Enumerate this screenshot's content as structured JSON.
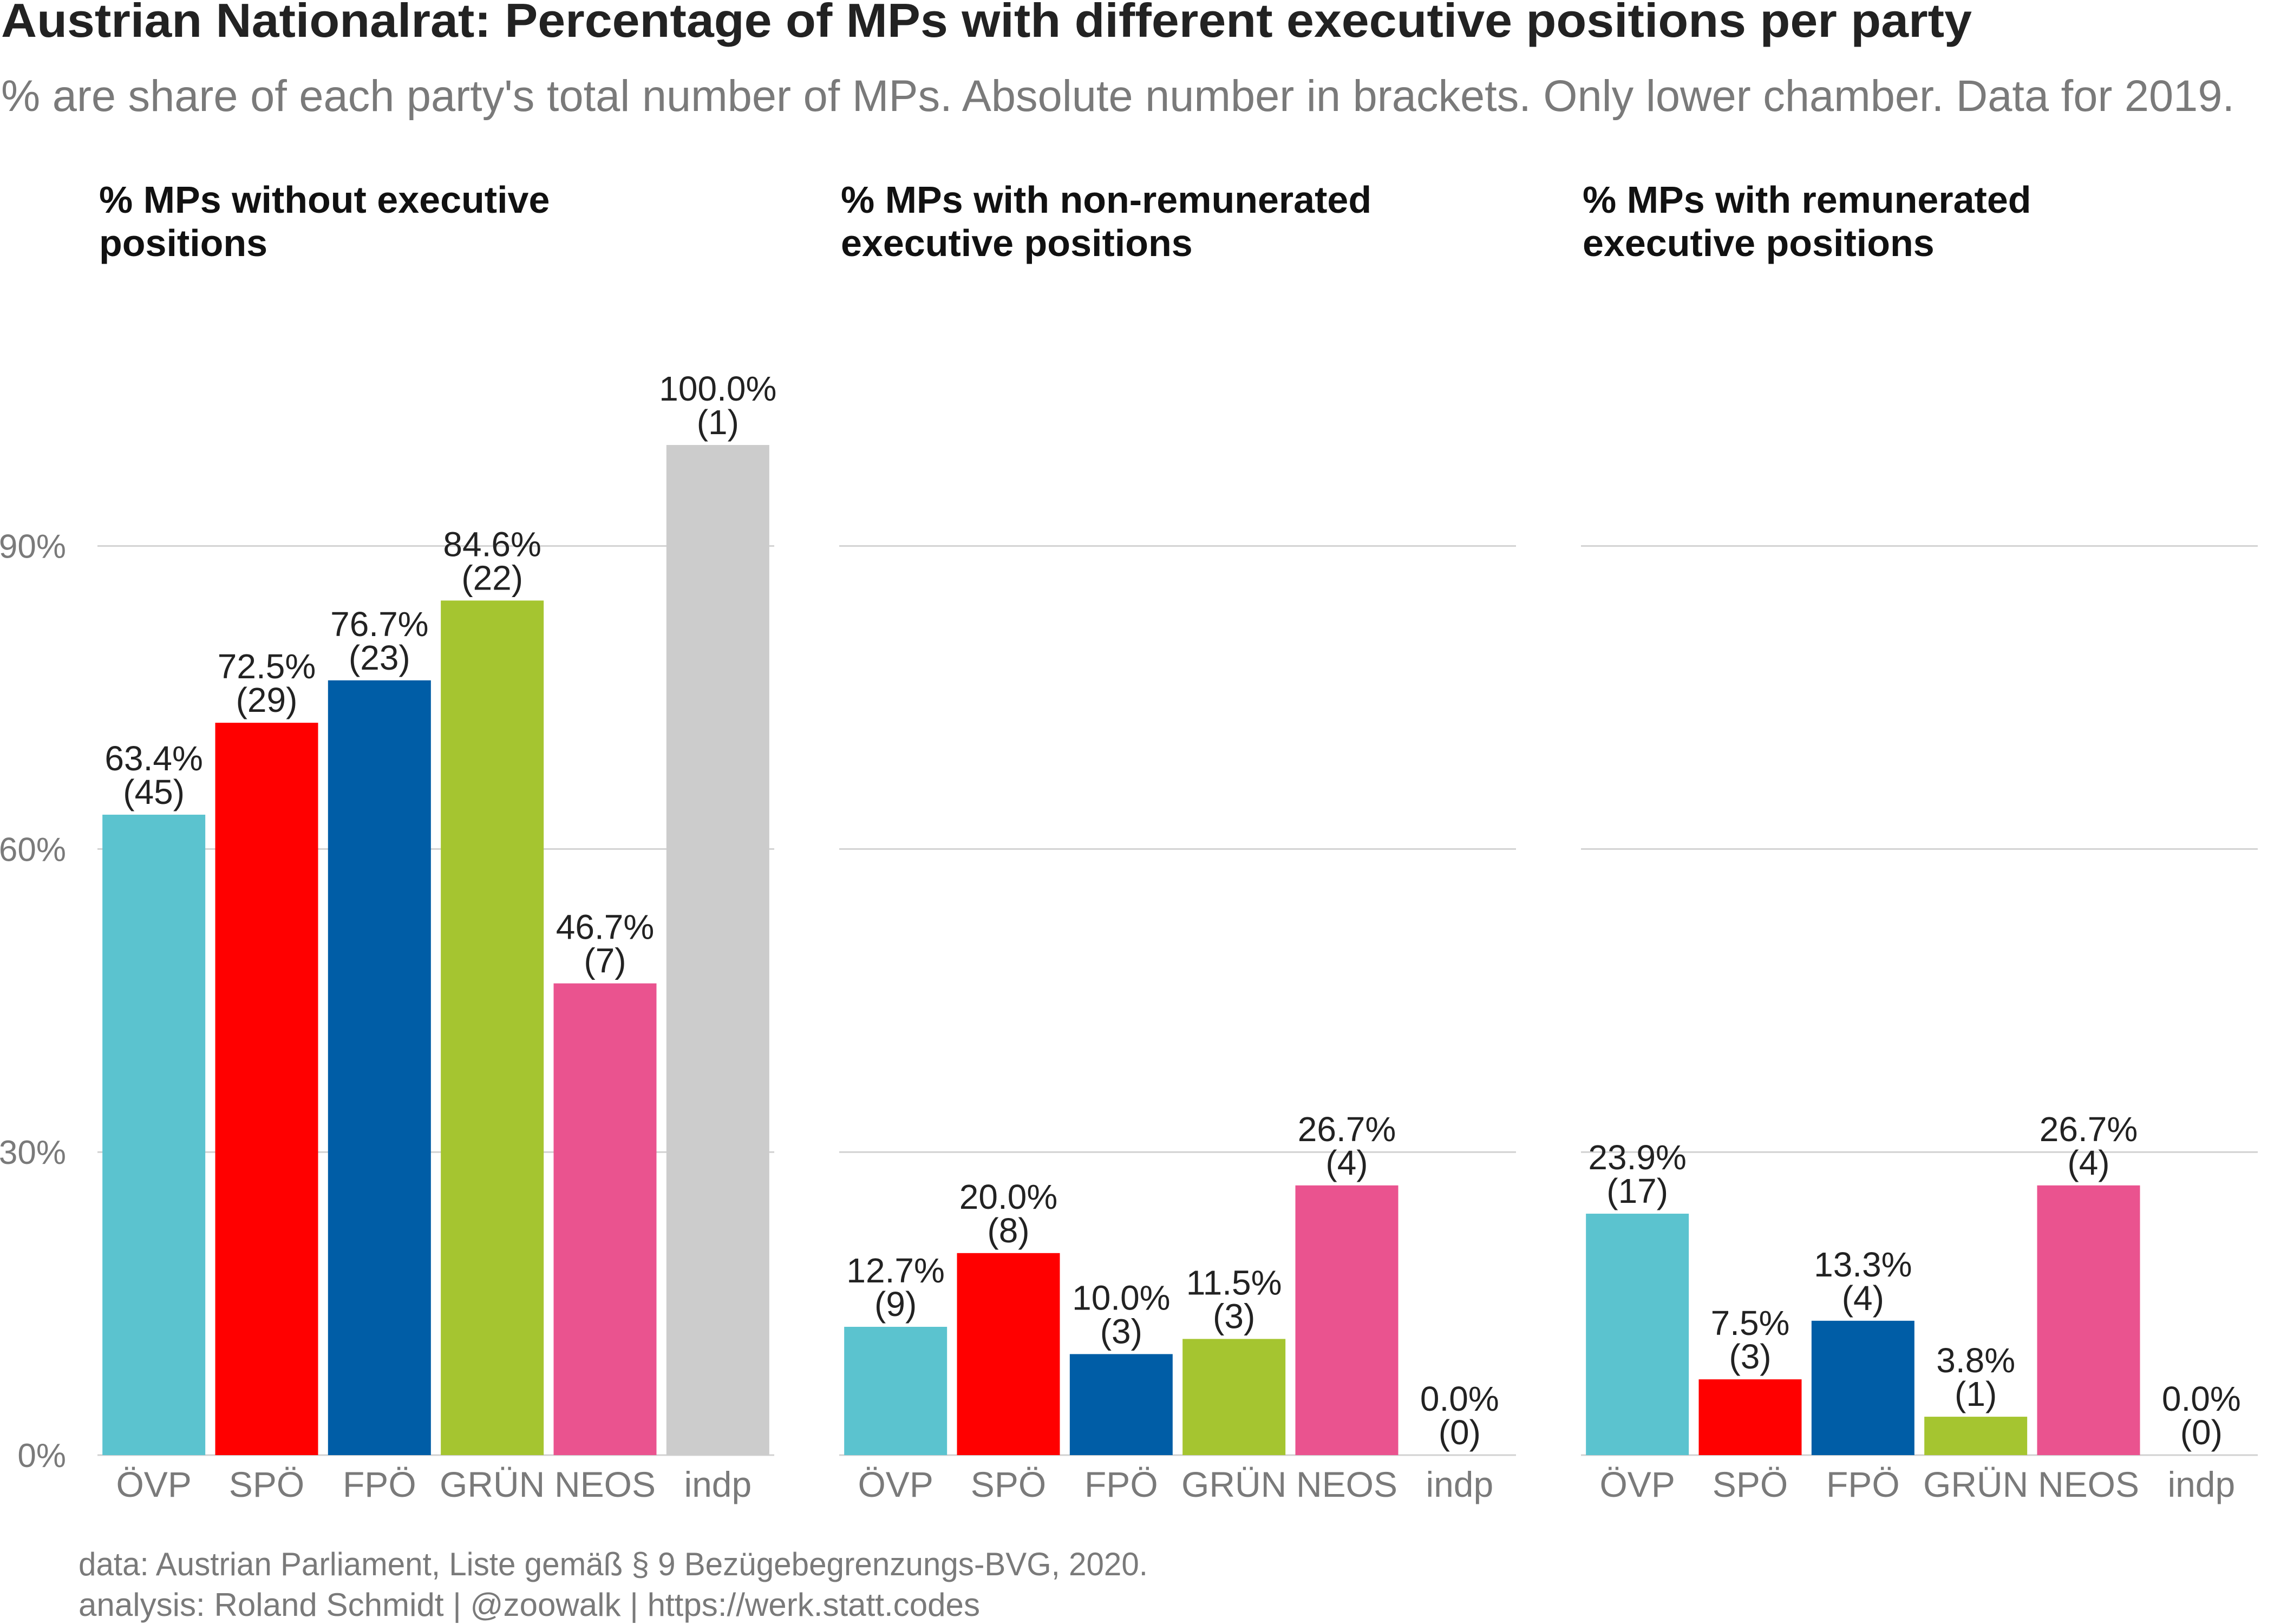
{
  "title": "Austrian Nationalrat: Percentage of MPs with different executive positions per party",
  "subtitle": "% are share of each party's total number of MPs. Absolute number in brackets. Only lower chamber. Data for 2019.",
  "caption": {
    "line1": "data: Austrian Parliament, Liste gemäß § 9 Bezügebegrenzungs-BVG, 2020.",
    "line2": "analysis: Roland Schmidt | @zoowalk | https://werk.statt.codes"
  },
  "chart_data": {
    "type": "bar",
    "categories": [
      "ÖVP",
      "SPÖ",
      "FPÖ",
      "GRÜN",
      "NEOS",
      "indp"
    ],
    "colors": [
      "#5bc3cf",
      "#ff0000",
      "#005da6",
      "#a5c530",
      "#ea538f",
      "#cccccc"
    ],
    "ylim": [
      0,
      100
    ],
    "yticks": [
      0,
      30,
      60,
      90
    ],
    "ytick_labels": [
      "0%",
      "30%",
      "60%",
      "90%"
    ],
    "grid": true,
    "legend": "none",
    "facets": [
      {
        "title_lines": [
          "% MPs without executive",
          "positions"
        ],
        "values": [
          63.4,
          72.5,
          76.7,
          84.6,
          46.7,
          100.0
        ],
        "value_labels": [
          "63.4%",
          "72.5%",
          "76.7%",
          "84.6%",
          "46.7%",
          "100.0%"
        ],
        "counts": [
          "(45)",
          "(29)",
          "(23)",
          "(22)",
          "(7)",
          "(1)"
        ]
      },
      {
        "title_lines": [
          "% MPs with non-remunerated",
          "executive positions"
        ],
        "values": [
          12.7,
          20.0,
          10.0,
          11.5,
          26.7,
          0.0
        ],
        "value_labels": [
          "12.7%",
          "20.0%",
          "10.0%",
          "11.5%",
          "26.7%",
          "0.0%"
        ],
        "counts": [
          "(9)",
          "(8)",
          "(3)",
          "(3)",
          "(4)",
          "(0)"
        ]
      },
      {
        "title_lines": [
          "% MPs with remunerated",
          "executive positions"
        ],
        "values": [
          23.9,
          7.5,
          13.3,
          3.8,
          26.7,
          0.0
        ],
        "value_labels": [
          "23.9%",
          "7.5%",
          "13.3%",
          "3.8%",
          "26.7%",
          "0.0%"
        ],
        "counts": [
          "(17)",
          "(3)",
          "(4)",
          "(1)",
          "(4)",
          "(0)"
        ]
      }
    ]
  }
}
